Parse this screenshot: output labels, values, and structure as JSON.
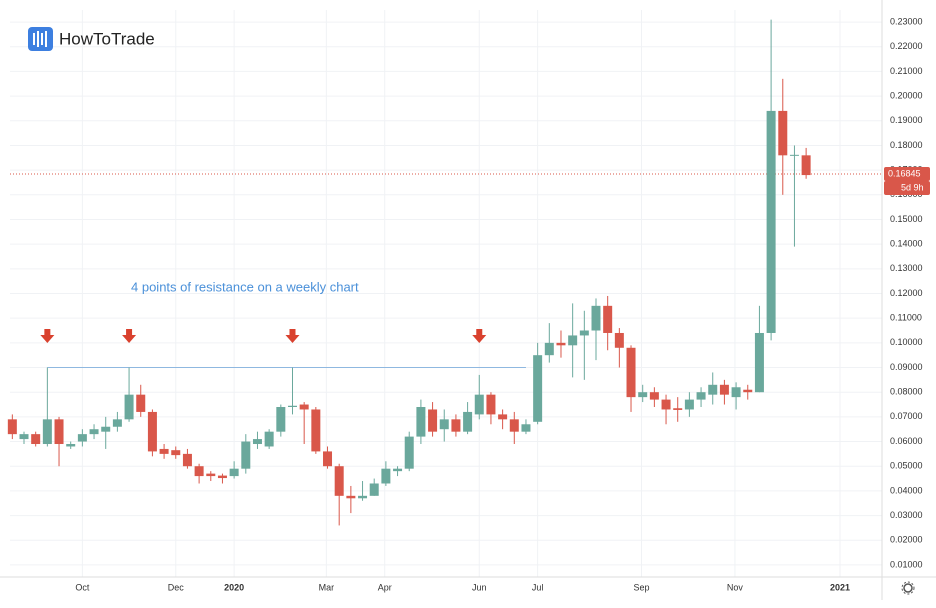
{
  "brand": "HowToTrade",
  "chart_data": {
    "type": "candlestick",
    "annotation": "4 points of resistance on a weekly chart",
    "x": [
      0,
      1,
      2,
      3,
      4,
      5,
      6,
      7,
      8,
      9,
      10,
      11,
      12,
      13,
      14,
      15,
      16,
      17,
      18,
      19,
      20,
      21,
      22,
      23,
      24,
      25,
      26,
      27,
      28,
      29,
      30,
      31,
      32,
      33,
      34,
      35,
      36,
      37,
      38,
      39,
      40,
      41,
      42,
      43,
      44,
      45,
      46,
      47,
      48,
      49,
      50,
      51,
      52,
      53,
      54,
      55,
      56,
      57,
      58,
      59,
      60,
      61,
      62,
      63,
      64,
      65,
      66,
      67,
      68
    ],
    "open": [
      0.069,
      0.061,
      0.063,
      0.059,
      0.069,
      0.058,
      0.06,
      0.063,
      0.064,
      0.066,
      0.069,
      0.079,
      0.072,
      0.057,
      0.0565,
      0.055,
      0.05,
      0.047,
      0.0462,
      0.046,
      0.049,
      0.059,
      0.058,
      0.064,
      0.074,
      0.075,
      0.073,
      0.056,
      0.05,
      0.038,
      0.037,
      0.038,
      0.043,
      0.048,
      0.049,
      0.062,
      0.073,
      0.065,
      0.069,
      0.064,
      0.071,
      0.079,
      0.071,
      0.069,
      0.064,
      0.068,
      0.095,
      0.1,
      0.099,
      0.103,
      0.105,
      0.115,
      0.104,
      0.098,
      0.078,
      0.08,
      0.077,
      0.0735,
      0.073,
      0.077,
      0.079,
      0.083,
      0.078,
      0.081,
      0.08,
      0.104,
      0.194,
      0.1758,
      0.176
    ],
    "high": [
      0.071,
      0.064,
      0.064,
      0.09,
      0.07,
      0.06,
      0.065,
      0.067,
      0.07,
      0.072,
      0.09,
      0.083,
      0.073,
      0.059,
      0.058,
      0.057,
      0.051,
      0.048,
      0.047,
      0.052,
      0.063,
      0.064,
      0.065,
      0.075,
      0.09,
      0.076,
      0.074,
      0.058,
      0.051,
      0.042,
      0.044,
      0.045,
      0.052,
      0.05,
      0.064,
      0.077,
      0.076,
      0.073,
      0.071,
      0.076,
      0.087,
      0.08,
      0.073,
      0.072,
      0.069,
      0.1,
      0.108,
      0.105,
      0.116,
      0.113,
      0.118,
      0.119,
      0.106,
      0.099,
      0.083,
      0.082,
      0.079,
      0.078,
      0.08,
      0.082,
      0.088,
      0.085,
      0.084,
      0.083,
      0.115,
      0.231,
      0.207,
      0.18,
      0.179
    ],
    "low": [
      0.061,
      0.059,
      0.058,
      0.058,
      0.05,
      0.057,
      0.058,
      0.061,
      0.057,
      0.064,
      0.068,
      0.07,
      0.054,
      0.053,
      0.053,
      0.049,
      0.043,
      0.044,
      0.043,
      0.045,
      0.047,
      0.057,
      0.057,
      0.062,
      0.071,
      0.059,
      0.055,
      0.049,
      0.026,
      0.031,
      0.036,
      0.038,
      0.042,
      0.046,
      0.048,
      0.059,
      0.062,
      0.06,
      0.062,
      0.063,
      0.069,
      0.067,
      0.065,
      0.059,
      0.063,
      0.067,
      0.092,
      0.094,
      0.086,
      0.085,
      0.093,
      0.097,
      0.09,
      0.072,
      0.076,
      0.074,
      0.067,
      0.068,
      0.07,
      0.074,
      0.075,
      0.075,
      0.073,
      0.077,
      0.08,
      0.101,
      0.16,
      0.139,
      0.1665
    ],
    "close": [
      0.063,
      0.063,
      0.059,
      0.069,
      0.059,
      0.059,
      0.063,
      0.065,
      0.066,
      0.069,
      0.079,
      0.072,
      0.056,
      0.055,
      0.0545,
      0.05,
      0.046,
      0.046,
      0.0452,
      0.049,
      0.06,
      0.061,
      0.064,
      0.074,
      0.0745,
      0.073,
      0.056,
      0.05,
      0.038,
      0.037,
      0.038,
      0.043,
      0.049,
      0.049,
      0.062,
      0.074,
      0.064,
      0.069,
      0.064,
      0.072,
      0.079,
      0.071,
      0.069,
      0.064,
      0.067,
      0.095,
      0.1,
      0.099,
      0.103,
      0.105,
      0.115,
      0.104,
      0.098,
      0.078,
      0.08,
      0.077,
      0.073,
      0.0728,
      0.077,
      0.08,
      0.083,
      0.079,
      0.082,
      0.08,
      0.104,
      0.194,
      0.176,
      0.1762,
      0.168
    ],
    "up_color": "#6aa89c",
    "down_color": "#d9574a",
    "xlim": [
      -0.2,
      74.5
    ],
    "xticks": [
      {
        "value": 6.0,
        "label": "Oct"
      },
      {
        "value": 14.0,
        "label": "Dec"
      },
      {
        "value": 19.0,
        "label": "2020"
      },
      {
        "value": 26.9,
        "label": "Mar"
      },
      {
        "value": 31.9,
        "label": "Apr"
      },
      {
        "value": 40.0,
        "label": "Jun"
      },
      {
        "value": 45.0,
        "label": "Jul"
      },
      {
        "value": 53.9,
        "label": "Sep"
      },
      {
        "value": 61.9,
        "label": "Nov"
      },
      {
        "value": 70.9,
        "label": "2021"
      }
    ],
    "ylim": [
      0.0051,
      0.2349
    ],
    "yticks": [
      {
        "value": 0.01,
        "label": "0.01000"
      },
      {
        "value": 0.02,
        "label": "0.02000"
      },
      {
        "value": 0.03,
        "label": "0.03000"
      },
      {
        "value": 0.04,
        "label": "0.04000"
      },
      {
        "value": 0.05,
        "label": "0.05000"
      },
      {
        "value": 0.06,
        "label": "0.06000"
      },
      {
        "value": 0.07,
        "label": "0.07000"
      },
      {
        "value": 0.08,
        "label": "0.08000"
      },
      {
        "value": 0.09,
        "label": "0.09000"
      },
      {
        "value": 0.1,
        "label": "0.10000"
      },
      {
        "value": 0.11,
        "label": "0.11000"
      },
      {
        "value": 0.12,
        "label": "0.12000"
      },
      {
        "value": 0.13,
        "label": "0.13000"
      },
      {
        "value": 0.14,
        "label": "0.14000"
      },
      {
        "value": 0.15,
        "label": "0.15000"
      },
      {
        "value": 0.16,
        "label": "0.16000"
      },
      {
        "value": 0.17,
        "label": "0.17000"
      },
      {
        "value": 0.18,
        "label": "0.18000"
      },
      {
        "value": 0.19,
        "label": "0.19000"
      },
      {
        "value": 0.2,
        "label": "0.20000"
      },
      {
        "value": 0.21,
        "label": "0.21000"
      },
      {
        "value": 0.22,
        "label": "0.22000"
      },
      {
        "value": 0.23,
        "label": "0.23000"
      }
    ],
    "grid": true,
    "last_price": 0.16845,
    "countdown": "5d 9h",
    "resistance": {
      "value": 0.09,
      "from": 3,
      "to": 44,
      "color": "#8fb8e0"
    },
    "arrows": [
      3,
      10,
      24,
      40
    ],
    "arrow_color": "#d9412e"
  }
}
